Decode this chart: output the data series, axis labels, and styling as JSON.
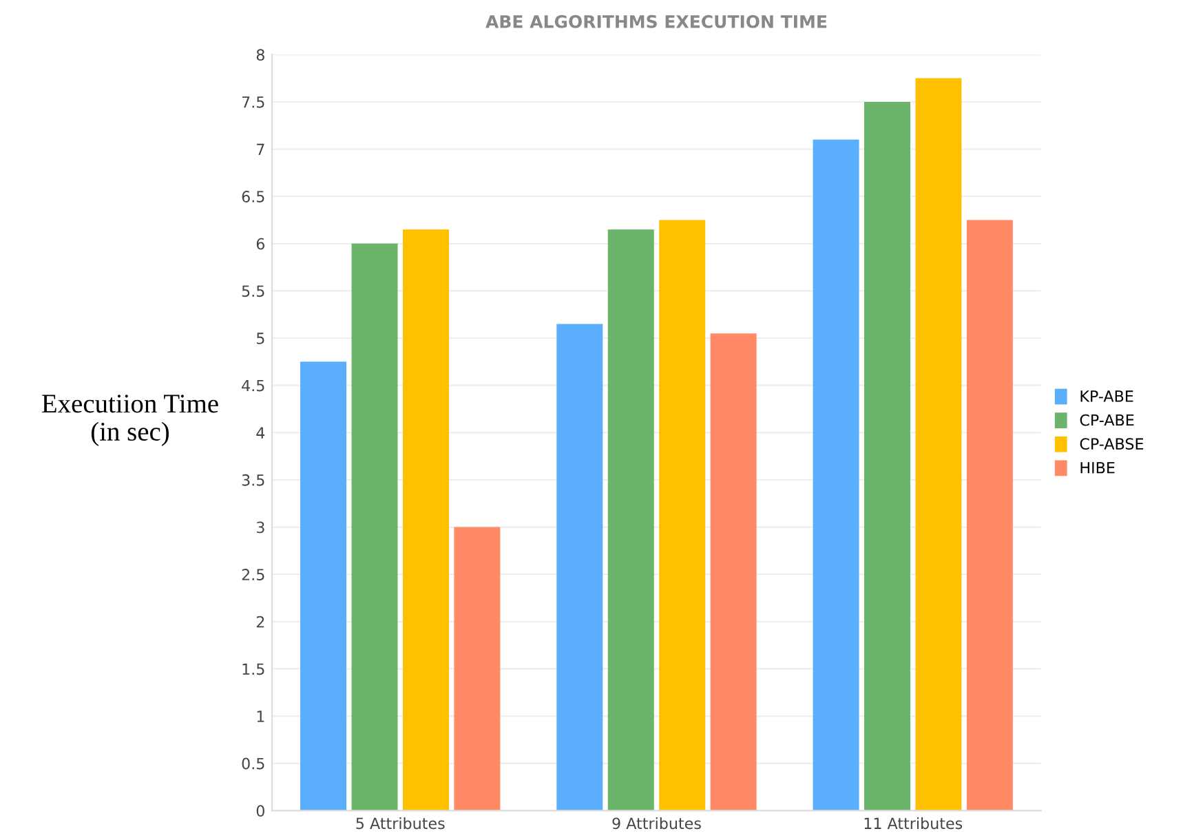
{
  "chart_data": {
    "type": "bar",
    "title": "ABE ALGORITHMS EXECUTION TIME",
    "ylabel": "Executiion Time\n(in sec)",
    "categories": [
      "5 Attributes",
      "9 Attributes",
      "11 Attributes"
    ],
    "series": [
      {
        "name": "KP-ABE",
        "color": "#5aaefc",
        "values": [
          4.75,
          5.15,
          7.1
        ]
      },
      {
        "name": "CP-ABE",
        "color": "#6ab46b",
        "values": [
          6.0,
          6.15,
          7.5
        ]
      },
      {
        "name": "CP-ABSE",
        "color": "#ffc000",
        "values": [
          6.15,
          6.25,
          7.75
        ]
      },
      {
        "name": "HIBE",
        "color": "#ff8a65",
        "values": [
          3.0,
          5.05,
          6.25
        ]
      }
    ],
    "ylim": [
      0,
      8
    ],
    "yticks": [
      0,
      0.5,
      1,
      1.5,
      2,
      2.5,
      3,
      3.5,
      4,
      4.5,
      5,
      5.5,
      6,
      6.5,
      7,
      7.5,
      8
    ],
    "grid": "y",
    "legend": "right"
  }
}
